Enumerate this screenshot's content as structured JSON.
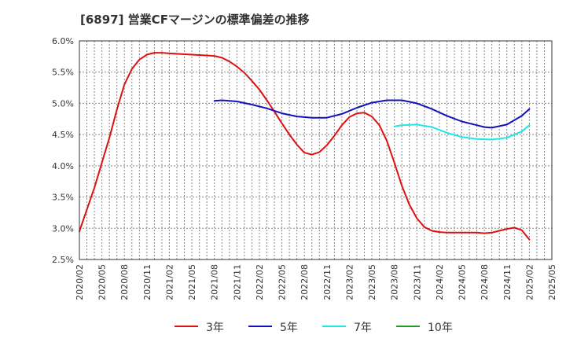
{
  "title": "[6897]  営業CFマージンの標準偏差の推移",
  "chart_data": {
    "type": "line",
    "title": "[6897]  営業CFマージンの標準偏差の推移",
    "xlabel": "",
    "ylabel": "",
    "ylim": [
      2.5,
      6.0
    ],
    "y_ticks": [
      "2.5%",
      "3.0%",
      "3.5%",
      "4.0%",
      "4.5%",
      "5.0%",
      "5.5%",
      "6.0%"
    ],
    "x_ticks": [
      "2020/02",
      "2020/05",
      "2020/08",
      "2020/11",
      "2021/02",
      "2021/05",
      "2021/08",
      "2021/11",
      "2022/02",
      "2022/05",
      "2022/08",
      "2022/11",
      "2023/02",
      "2023/05",
      "2023/08",
      "2023/11",
      "2024/02",
      "2024/05",
      "2024/08",
      "2024/11",
      "2025/02",
      "2025/05"
    ],
    "grid": true,
    "legend_position": "bottom",
    "series": [
      {
        "name": "3年",
        "color": "#dd1111",
        "x": [
          "2020/02",
          "2020/03",
          "2020/04",
          "2020/05",
          "2020/06",
          "2020/07",
          "2020/08",
          "2020/09",
          "2020/10",
          "2020/11",
          "2020/12",
          "2021/01",
          "2021/02",
          "2021/05",
          "2021/08",
          "2021/09",
          "2021/10",
          "2021/11",
          "2021/12",
          "2022/01",
          "2022/02",
          "2022/03",
          "2022/04",
          "2022/05",
          "2022/06",
          "2022/07",
          "2022/08",
          "2022/09",
          "2022/10",
          "2022/11",
          "2022/12",
          "2023/01",
          "2023/02",
          "2023/03",
          "2023/04",
          "2023/05",
          "2023/06",
          "2023/07",
          "2023/08",
          "2023/09",
          "2023/10",
          "2023/11",
          "2023/12",
          "2024/01",
          "2024/02",
          "2024/03",
          "2024/05",
          "2024/07",
          "2024/08",
          "2024/09",
          "2024/10",
          "2024/11",
          "2024/12",
          "2025/01",
          "2025/02"
        ],
        "values": [
          2.95,
          3.3,
          3.65,
          4.05,
          4.45,
          4.9,
          5.3,
          5.55,
          5.7,
          5.78,
          5.81,
          5.81,
          5.8,
          5.78,
          5.76,
          5.73,
          5.67,
          5.59,
          5.49,
          5.36,
          5.22,
          5.05,
          4.87,
          4.68,
          4.5,
          4.34,
          4.21,
          4.18,
          4.22,
          4.33,
          4.48,
          4.65,
          4.78,
          4.84,
          4.85,
          4.79,
          4.65,
          4.4,
          4.05,
          3.68,
          3.38,
          3.16,
          3.02,
          2.96,
          2.94,
          2.93,
          2.93,
          2.93,
          2.92,
          2.93,
          2.96,
          2.99,
          3.01,
          2.97,
          2.82
        ]
      },
      {
        "name": "5年",
        "color": "#1111bb",
        "x": [
          "2021/08",
          "2021/09",
          "2021/11",
          "2022/01",
          "2022/03",
          "2022/05",
          "2022/07",
          "2022/09",
          "2022/11",
          "2023/01",
          "2023/03",
          "2023/05",
          "2023/07",
          "2023/09",
          "2023/11",
          "2024/01",
          "2024/03",
          "2024/05",
          "2024/07",
          "2024/08",
          "2024/09",
          "2024/11",
          "2025/01",
          "2025/02"
        ],
        "values": [
          5.04,
          5.05,
          5.03,
          4.98,
          4.92,
          4.84,
          4.79,
          4.77,
          4.77,
          4.83,
          4.93,
          5.01,
          5.05,
          5.05,
          5.0,
          4.91,
          4.8,
          4.71,
          4.65,
          4.62,
          4.61,
          4.66,
          4.8,
          4.91
        ]
      },
      {
        "name": "7年",
        "color": "#22e5e5",
        "x": [
          "2023/08",
          "2023/09",
          "2023/11",
          "2024/01",
          "2024/03",
          "2024/05",
          "2024/07",
          "2024/09",
          "2024/11",
          "2025/01",
          "2025/02"
        ],
        "values": [
          4.63,
          4.65,
          4.66,
          4.62,
          4.53,
          4.46,
          4.43,
          4.42,
          4.45,
          4.55,
          4.65
        ]
      },
      {
        "name": "10年",
        "color": "#229922",
        "x": [],
        "values": []
      }
    ]
  }
}
